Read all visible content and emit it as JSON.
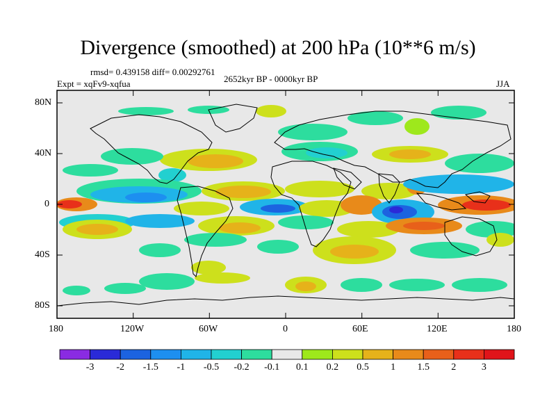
{
  "figure": {
    "title": "Divergence (smoothed) at 200 hPa (10**6 m/s)",
    "stats": "rmsd= 0.439158 diff= 0.00292761",
    "experiment": "Expt = xqFv9-xqfua",
    "period": "2652kyr BP - 0000kyr BP",
    "season": "JJA"
  },
  "map": {
    "lat_ticks": [
      "80N",
      "40N",
      "0",
      "40S",
      "80S"
    ],
    "lon_ticks": [
      "180",
      "120W",
      "60W",
      "0",
      "60E",
      "120E",
      "180"
    ],
    "land_fill": "#e8e8e8"
  },
  "colorbar": {
    "labels": [
      "-3",
      "-2",
      "-1.5",
      "-1",
      "-0.5",
      "-0.2",
      "-0.1",
      "0.1",
      "0.2",
      "0.5",
      "1",
      "1.5",
      "2",
      "3"
    ],
    "colors": [
      "#8a2be2",
      "#2a2ad8",
      "#1c63e0",
      "#1d8ff0",
      "#20b4e8",
      "#22d0d0",
      "#2ddd9e",
      "#e8e8e8",
      "#9ee81c",
      "#cde01c",
      "#e6b21a",
      "#e88a1a",
      "#e8601a",
      "#e8301a",
      "#e0141a"
    ]
  }
}
